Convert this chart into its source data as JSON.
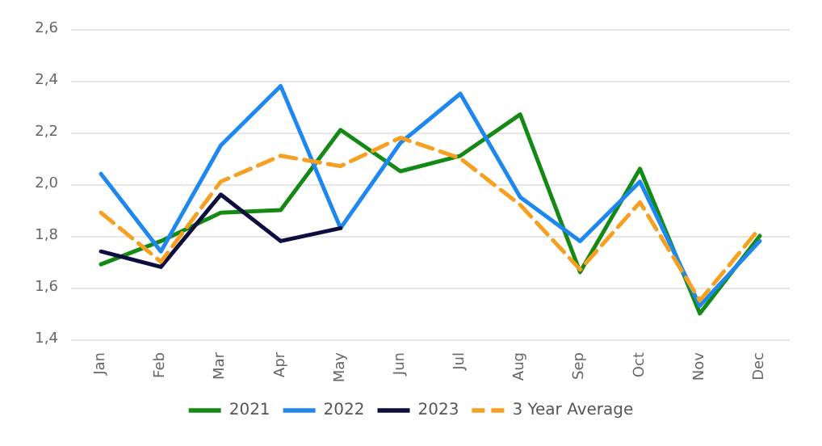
{
  "chart_data": {
    "type": "line",
    "categories": [
      "Jan",
      "Feb",
      "Mar",
      "Apr",
      "May",
      "Jun",
      "Jul",
      "Aug",
      "Sep",
      "Oct",
      "Nov",
      "Dec"
    ],
    "series": [
      {
        "name": "2021",
        "color": "#138a13",
        "values": [
          1.69,
          1.78,
          1.89,
          1.9,
          2.21,
          2.05,
          2.11,
          2.27,
          1.66,
          2.06,
          1.5,
          1.8
        ]
      },
      {
        "name": "2022",
        "color": "#1e88f0",
        "values": [
          2.04,
          1.74,
          2.15,
          2.38,
          1.83,
          2.16,
          2.35,
          1.95,
          1.78,
          2.01,
          1.53,
          1.78
        ]
      },
      {
        "name": "2023",
        "color": "#0d0d40",
        "values": [
          1.74,
          1.68,
          1.96,
          1.78,
          1.83,
          null,
          null,
          null,
          null,
          null,
          null,
          null
        ]
      },
      {
        "name": "3 Year Average",
        "color": "#f5a020",
        "line_style": "dashed",
        "values": [
          1.89,
          1.7,
          2.01,
          2.11,
          2.07,
          2.18,
          2.1,
          1.92,
          1.67,
          1.93,
          1.55,
          1.83
        ]
      }
    ],
    "ylim": [
      1.4,
      2.6
    ],
    "yticks": [
      {
        "value": 1.4,
        "label": "1,4"
      },
      {
        "value": 1.6,
        "label": "1,6"
      },
      {
        "value": 1.8,
        "label": "1,8"
      },
      {
        "value": 2.0,
        "label": "2,0"
      },
      {
        "value": 2.2,
        "label": "2,2"
      },
      {
        "value": 2.4,
        "label": "2,4"
      },
      {
        "value": 2.6,
        "label": "2,6"
      }
    ],
    "grid": "y",
    "legend": "bottom",
    "marker": "none"
  }
}
